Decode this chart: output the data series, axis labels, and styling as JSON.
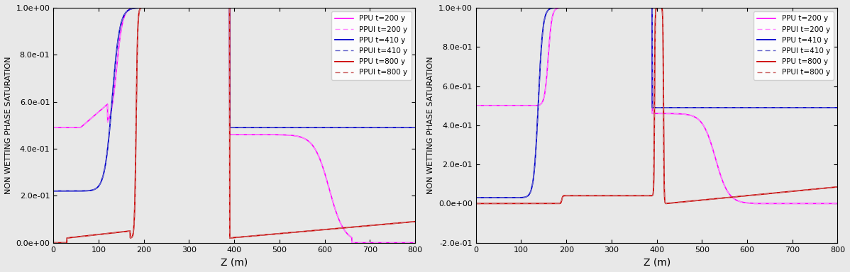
{
  "left_plot": {
    "ylim": [
      0.0,
      1.0
    ],
    "xlim": [
      0,
      800
    ],
    "yticks": [
      0.0,
      0.2,
      0.4,
      0.6,
      0.8,
      1.0
    ],
    "ytick_labels": [
      "0.0e+00",
      "2.0e-01",
      "4.0e-01",
      "6.0e-01",
      "8.0e-01",
      "1.0e+00"
    ],
    "xticks": [
      0,
      100,
      200,
      300,
      400,
      500,
      600,
      700,
      800
    ]
  },
  "right_plot": {
    "ylim": [
      -0.2,
      1.0
    ],
    "xlim": [
      0,
      800
    ],
    "yticks": [
      -0.2,
      0.0,
      0.2,
      0.4,
      0.6,
      0.8,
      1.0
    ],
    "ytick_labels": [
      "-2.0e-01",
      "0.0e+00",
      "2.0e-01",
      "4.0e-01",
      "6.0e-01",
      "8.0e-01",
      "1.0e+00"
    ],
    "xticks": [
      0,
      100,
      200,
      300,
      400,
      500,
      600,
      700,
      800
    ]
  },
  "colors": {
    "magenta": "#ff00ff",
    "magenta_dashed": "#ff44ff",
    "blue": "#0000cc",
    "blue_dashed": "#4444cc",
    "red": "#cc0000",
    "red_dashed": "#cc4444"
  },
  "legend_labels": [
    "PPU t=200 y",
    "PPUI t=200 y",
    "PPU t=410 y",
    "PPUI t=410 y",
    "PPU t=800 y",
    "PPUI t=800 y"
  ],
  "xlabel": "Z (m)",
  "ylabel": "NON WETTING PHASE SATURATION",
  "bg_color": "#e8e8e8"
}
